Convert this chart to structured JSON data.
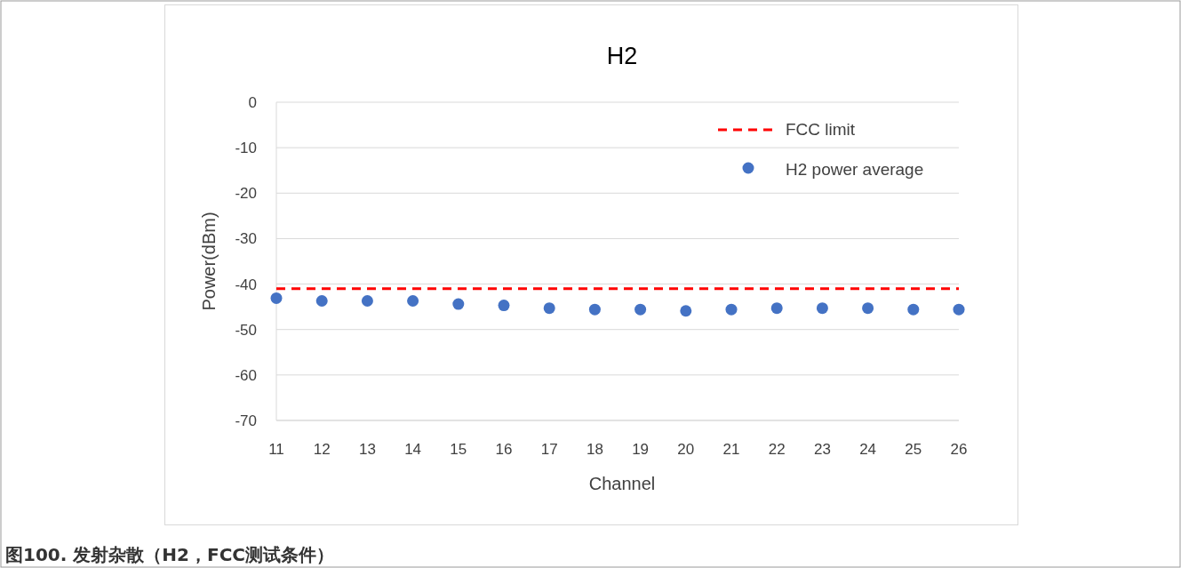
{
  "chart_data": {
    "type": "scatter",
    "title": "H2",
    "xlabel": "Channel",
    "ylabel": "Power(dBm)",
    "annotations": [
      "图100. 发射杂散（H2，FCC测试条件）"
    ],
    "x": [
      11,
      12,
      13,
      14,
      15,
      16,
      17,
      18,
      19,
      20,
      21,
      22,
      23,
      24,
      25,
      26
    ],
    "xlim": [
      11,
      26
    ],
    "xticks": [
      11,
      12,
      13,
      14,
      15,
      16,
      17,
      18,
      19,
      20,
      21,
      22,
      23,
      24,
      25,
      26
    ],
    "ylim": [
      -70,
      0
    ],
    "yticks": [
      -70,
      -60,
      -50,
      -40,
      -30,
      -20,
      -10,
      0
    ],
    "grid": "y",
    "legend": "top right",
    "series": [
      {
        "name": "FCC limit",
        "type": "line",
        "color": "#ff0000",
        "line_style": "dashed",
        "marker": "none",
        "x": [
          11,
          26
        ],
        "values": [
          -41,
          -41
        ]
      },
      {
        "name": "H2 power average",
        "type": "scatter",
        "color": "#4472c4",
        "marker": "circle",
        "values": [
          -43.1,
          -43.7,
          -43.7,
          -43.7,
          -44.4,
          -44.7,
          -45.3,
          -45.6,
          -45.6,
          -45.9,
          -45.6,
          -45.3,
          -45.3,
          -45.3,
          -45.6,
          -45.6
        ]
      }
    ]
  }
}
